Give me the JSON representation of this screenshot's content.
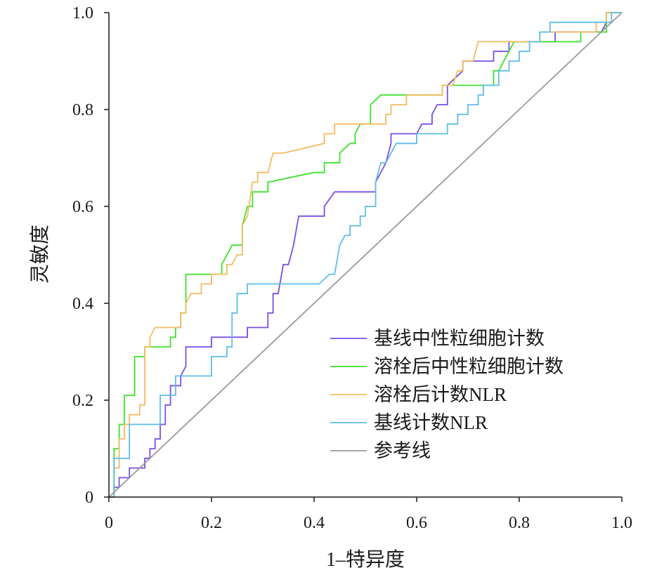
{
  "chart_data": {
    "type": "line",
    "title": "",
    "xlabel": "1–特异度",
    "ylabel": "灵敏度",
    "xlim": [
      0,
      1
    ],
    "ylim": [
      0,
      1
    ],
    "x_ticks": [
      0,
      0.2,
      0.4,
      0.6,
      0.8,
      1.0
    ],
    "x_tick_labels": [
      "0",
      "0.2",
      "0.4",
      "0.6",
      "0.8",
      "1.0"
    ],
    "y_ticks": [
      0,
      0.2,
      0.4,
      0.6,
      0.8,
      1.0
    ],
    "y_tick_labels": [
      "0",
      "0.2",
      "0.4",
      "0.6",
      "0.8",
      "1.0"
    ],
    "grid": false,
    "legend_position": "bottom-right",
    "series": [
      {
        "name": "基线中性粒细胞计数",
        "color": "#7a4ee6",
        "points": [
          [
            0,
            0
          ],
          [
            0.01,
            0
          ],
          [
            0.01,
            0.02
          ],
          [
            0.02,
            0.02
          ],
          [
            0.02,
            0.04
          ],
          [
            0.04,
            0.04
          ],
          [
            0.04,
            0.06
          ],
          [
            0.07,
            0.06
          ],
          [
            0.07,
            0.08
          ],
          [
            0.08,
            0.08
          ],
          [
            0.08,
            0.1
          ],
          [
            0.09,
            0.1
          ],
          [
            0.09,
            0.12
          ],
          [
            0.1,
            0.12
          ],
          [
            0.1,
            0.15
          ],
          [
            0.11,
            0.15
          ],
          [
            0.11,
            0.19
          ],
          [
            0.12,
            0.19
          ],
          [
            0.12,
            0.23
          ],
          [
            0.14,
            0.23
          ],
          [
            0.14,
            0.25
          ],
          [
            0.15,
            0.27
          ],
          [
            0.15,
            0.31
          ],
          [
            0.2,
            0.31
          ],
          [
            0.2,
            0.33
          ],
          [
            0.27,
            0.33
          ],
          [
            0.27,
            0.35
          ],
          [
            0.31,
            0.35
          ],
          [
            0.31,
            0.38
          ],
          [
            0.32,
            0.38
          ],
          [
            0.32,
            0.42
          ],
          [
            0.33,
            0.42
          ],
          [
            0.34,
            0.48
          ],
          [
            0.35,
            0.48
          ],
          [
            0.36,
            0.52
          ],
          [
            0.37,
            0.58
          ],
          [
            0.42,
            0.58
          ],
          [
            0.42,
            0.6
          ],
          [
            0.44,
            0.63
          ],
          [
            0.52,
            0.63
          ],
          [
            0.52,
            0.65
          ],
          [
            0.54,
            0.69
          ],
          [
            0.55,
            0.73
          ],
          [
            0.55,
            0.75
          ],
          [
            0.6,
            0.75
          ],
          [
            0.61,
            0.77
          ],
          [
            0.63,
            0.77
          ],
          [
            0.63,
            0.79
          ],
          [
            0.64,
            0.81
          ],
          [
            0.66,
            0.81
          ],
          [
            0.66,
            0.85
          ],
          [
            0.69,
            0.88
          ],
          [
            0.69,
            0.9
          ],
          [
            0.75,
            0.9
          ],
          [
            0.75,
            0.92
          ],
          [
            0.78,
            0.92
          ],
          [
            0.78,
            0.94
          ],
          [
            0.87,
            0.94
          ],
          [
            0.87,
            0.96
          ],
          [
            0.96,
            0.96
          ],
          [
            0.97,
            0.98
          ],
          [
            0.97,
            1
          ],
          [
            1,
            1
          ]
        ]
      },
      {
        "name": "溶栓后中性粒细胞计数",
        "color": "#3ce32a",
        "points": [
          [
            0,
            0
          ],
          [
            0.01,
            0
          ],
          [
            0.01,
            0.06
          ],
          [
            0.01,
            0.1
          ],
          [
            0.02,
            0.1
          ],
          [
            0.02,
            0.15
          ],
          [
            0.03,
            0.15
          ],
          [
            0.03,
            0.21
          ],
          [
            0.05,
            0.21
          ],
          [
            0.05,
            0.29
          ],
          [
            0.07,
            0.29
          ],
          [
            0.07,
            0.31
          ],
          [
            0.12,
            0.31
          ],
          [
            0.12,
            0.33
          ],
          [
            0.13,
            0.33
          ],
          [
            0.13,
            0.35
          ],
          [
            0.14,
            0.35
          ],
          [
            0.14,
            0.38
          ],
          [
            0.15,
            0.38
          ],
          [
            0.15,
            0.46
          ],
          [
            0.22,
            0.46
          ],
          [
            0.22,
            0.48
          ],
          [
            0.23,
            0.5
          ],
          [
            0.24,
            0.52
          ],
          [
            0.26,
            0.52
          ],
          [
            0.26,
            0.56
          ],
          [
            0.27,
            0.6
          ],
          [
            0.28,
            0.6
          ],
          [
            0.28,
            0.63
          ],
          [
            0.31,
            0.63
          ],
          [
            0.31,
            0.65
          ],
          [
            0.4,
            0.67
          ],
          [
            0.42,
            0.67
          ],
          [
            0.42,
            0.69
          ],
          [
            0.45,
            0.69
          ],
          [
            0.45,
            0.71
          ],
          [
            0.47,
            0.73
          ],
          [
            0.48,
            0.73
          ],
          [
            0.48,
            0.75
          ],
          [
            0.49,
            0.77
          ],
          [
            0.51,
            0.77
          ],
          [
            0.51,
            0.81
          ],
          [
            0.53,
            0.83
          ],
          [
            0.65,
            0.83
          ],
          [
            0.65,
            0.85
          ],
          [
            0.75,
            0.85
          ],
          [
            0.75,
            0.88
          ],
          [
            0.76,
            0.88
          ],
          [
            0.79,
            0.94
          ],
          [
            0.92,
            0.94
          ],
          [
            0.92,
            0.96
          ],
          [
            0.97,
            0.96
          ],
          [
            0.97,
            1
          ],
          [
            1,
            1
          ]
        ]
      },
      {
        "name": "溶栓后计数NLR",
        "color": "#f5ba60",
        "points": [
          [
            0,
            0
          ],
          [
            0.01,
            0
          ],
          [
            0.01,
            0.06
          ],
          [
            0.02,
            0.06
          ],
          [
            0.02,
            0.12
          ],
          [
            0.03,
            0.12
          ],
          [
            0.03,
            0.15
          ],
          [
            0.04,
            0.15
          ],
          [
            0.04,
            0.17
          ],
          [
            0.06,
            0.17
          ],
          [
            0.06,
            0.19
          ],
          [
            0.07,
            0.19
          ],
          [
            0.07,
            0.31
          ],
          [
            0.08,
            0.31
          ],
          [
            0.08,
            0.33
          ],
          [
            0.09,
            0.35
          ],
          [
            0.14,
            0.35
          ],
          [
            0.14,
            0.38
          ],
          [
            0.15,
            0.38
          ],
          [
            0.15,
            0.4
          ],
          [
            0.16,
            0.42
          ],
          [
            0.18,
            0.42
          ],
          [
            0.18,
            0.44
          ],
          [
            0.2,
            0.44
          ],
          [
            0.2,
            0.46
          ],
          [
            0.23,
            0.46
          ],
          [
            0.23,
            0.48
          ],
          [
            0.24,
            0.48
          ],
          [
            0.25,
            0.5
          ],
          [
            0.26,
            0.5
          ],
          [
            0.26,
            0.56
          ],
          [
            0.27,
            0.58
          ],
          [
            0.28,
            0.65
          ],
          [
            0.29,
            0.65
          ],
          [
            0.29,
            0.67
          ],
          [
            0.31,
            0.67
          ],
          [
            0.32,
            0.71
          ],
          [
            0.34,
            0.71
          ],
          [
            0.42,
            0.73
          ],
          [
            0.42,
            0.75
          ],
          [
            0.44,
            0.75
          ],
          [
            0.44,
            0.77
          ],
          [
            0.54,
            0.77
          ],
          [
            0.54,
            0.79
          ],
          [
            0.55,
            0.79
          ],
          [
            0.55,
            0.81
          ],
          [
            0.58,
            0.81
          ],
          [
            0.58,
            0.83
          ],
          [
            0.65,
            0.83
          ],
          [
            0.65,
            0.85
          ],
          [
            0.67,
            0.85
          ],
          [
            0.68,
            0.88
          ],
          [
            0.69,
            0.88
          ],
          [
            0.69,
            0.9
          ],
          [
            0.71,
            0.9
          ],
          [
            0.72,
            0.94
          ],
          [
            0.84,
            0.94
          ],
          [
            0.84,
            0.96
          ],
          [
            0.95,
            0.96
          ],
          [
            0.95,
            0.98
          ],
          [
            0.97,
            0.98
          ],
          [
            0.97,
            1
          ],
          [
            1,
            1
          ]
        ]
      },
      {
        "name": "基线计数NLR",
        "color": "#5fbde6",
        "points": [
          [
            0,
            0
          ],
          [
            0.01,
            0
          ],
          [
            0.01,
            0.02
          ],
          [
            0.01,
            0.08
          ],
          [
            0.04,
            0.08
          ],
          [
            0.04,
            0.15
          ],
          [
            0.1,
            0.15
          ],
          [
            0.1,
            0.21
          ],
          [
            0.13,
            0.21
          ],
          [
            0.13,
            0.25
          ],
          [
            0.2,
            0.25
          ],
          [
            0.2,
            0.29
          ],
          [
            0.23,
            0.29
          ],
          [
            0.23,
            0.31
          ],
          [
            0.24,
            0.31
          ],
          [
            0.24,
            0.38
          ],
          [
            0.25,
            0.38
          ],
          [
            0.25,
            0.42
          ],
          [
            0.27,
            0.42
          ],
          [
            0.27,
            0.44
          ],
          [
            0.41,
            0.44
          ],
          [
            0.43,
            0.46
          ],
          [
            0.44,
            0.46
          ],
          [
            0.45,
            0.52
          ],
          [
            0.46,
            0.54
          ],
          [
            0.47,
            0.54
          ],
          [
            0.47,
            0.56
          ],
          [
            0.49,
            0.56
          ],
          [
            0.49,
            0.58
          ],
          [
            0.5,
            0.58
          ],
          [
            0.5,
            0.6
          ],
          [
            0.52,
            0.6
          ],
          [
            0.52,
            0.65
          ],
          [
            0.53,
            0.69
          ],
          [
            0.54,
            0.69
          ],
          [
            0.55,
            0.71
          ],
          [
            0.56,
            0.73
          ],
          [
            0.6,
            0.73
          ],
          [
            0.6,
            0.75
          ],
          [
            0.66,
            0.75
          ],
          [
            0.66,
            0.77
          ],
          [
            0.68,
            0.77
          ],
          [
            0.68,
            0.79
          ],
          [
            0.7,
            0.79
          ],
          [
            0.7,
            0.81
          ],
          [
            0.72,
            0.81
          ],
          [
            0.72,
            0.83
          ],
          [
            0.73,
            0.83
          ],
          [
            0.73,
            0.85
          ],
          [
            0.76,
            0.85
          ],
          [
            0.76,
            0.88
          ],
          [
            0.78,
            0.88
          ],
          [
            0.78,
            0.9
          ],
          [
            0.8,
            0.9
          ],
          [
            0.8,
            0.92
          ],
          [
            0.82,
            0.92
          ],
          [
            0.82,
            0.94
          ],
          [
            0.84,
            0.94
          ],
          [
            0.84,
            0.96
          ],
          [
            0.86,
            0.96
          ],
          [
            0.86,
            0.98
          ],
          [
            0.98,
            0.98
          ],
          [
            0.98,
            1
          ],
          [
            1,
            1
          ]
        ]
      },
      {
        "name": "参考线",
        "color": "#999999",
        "points": [
          [
            0,
            0
          ],
          [
            1,
            1
          ]
        ]
      }
    ]
  }
}
